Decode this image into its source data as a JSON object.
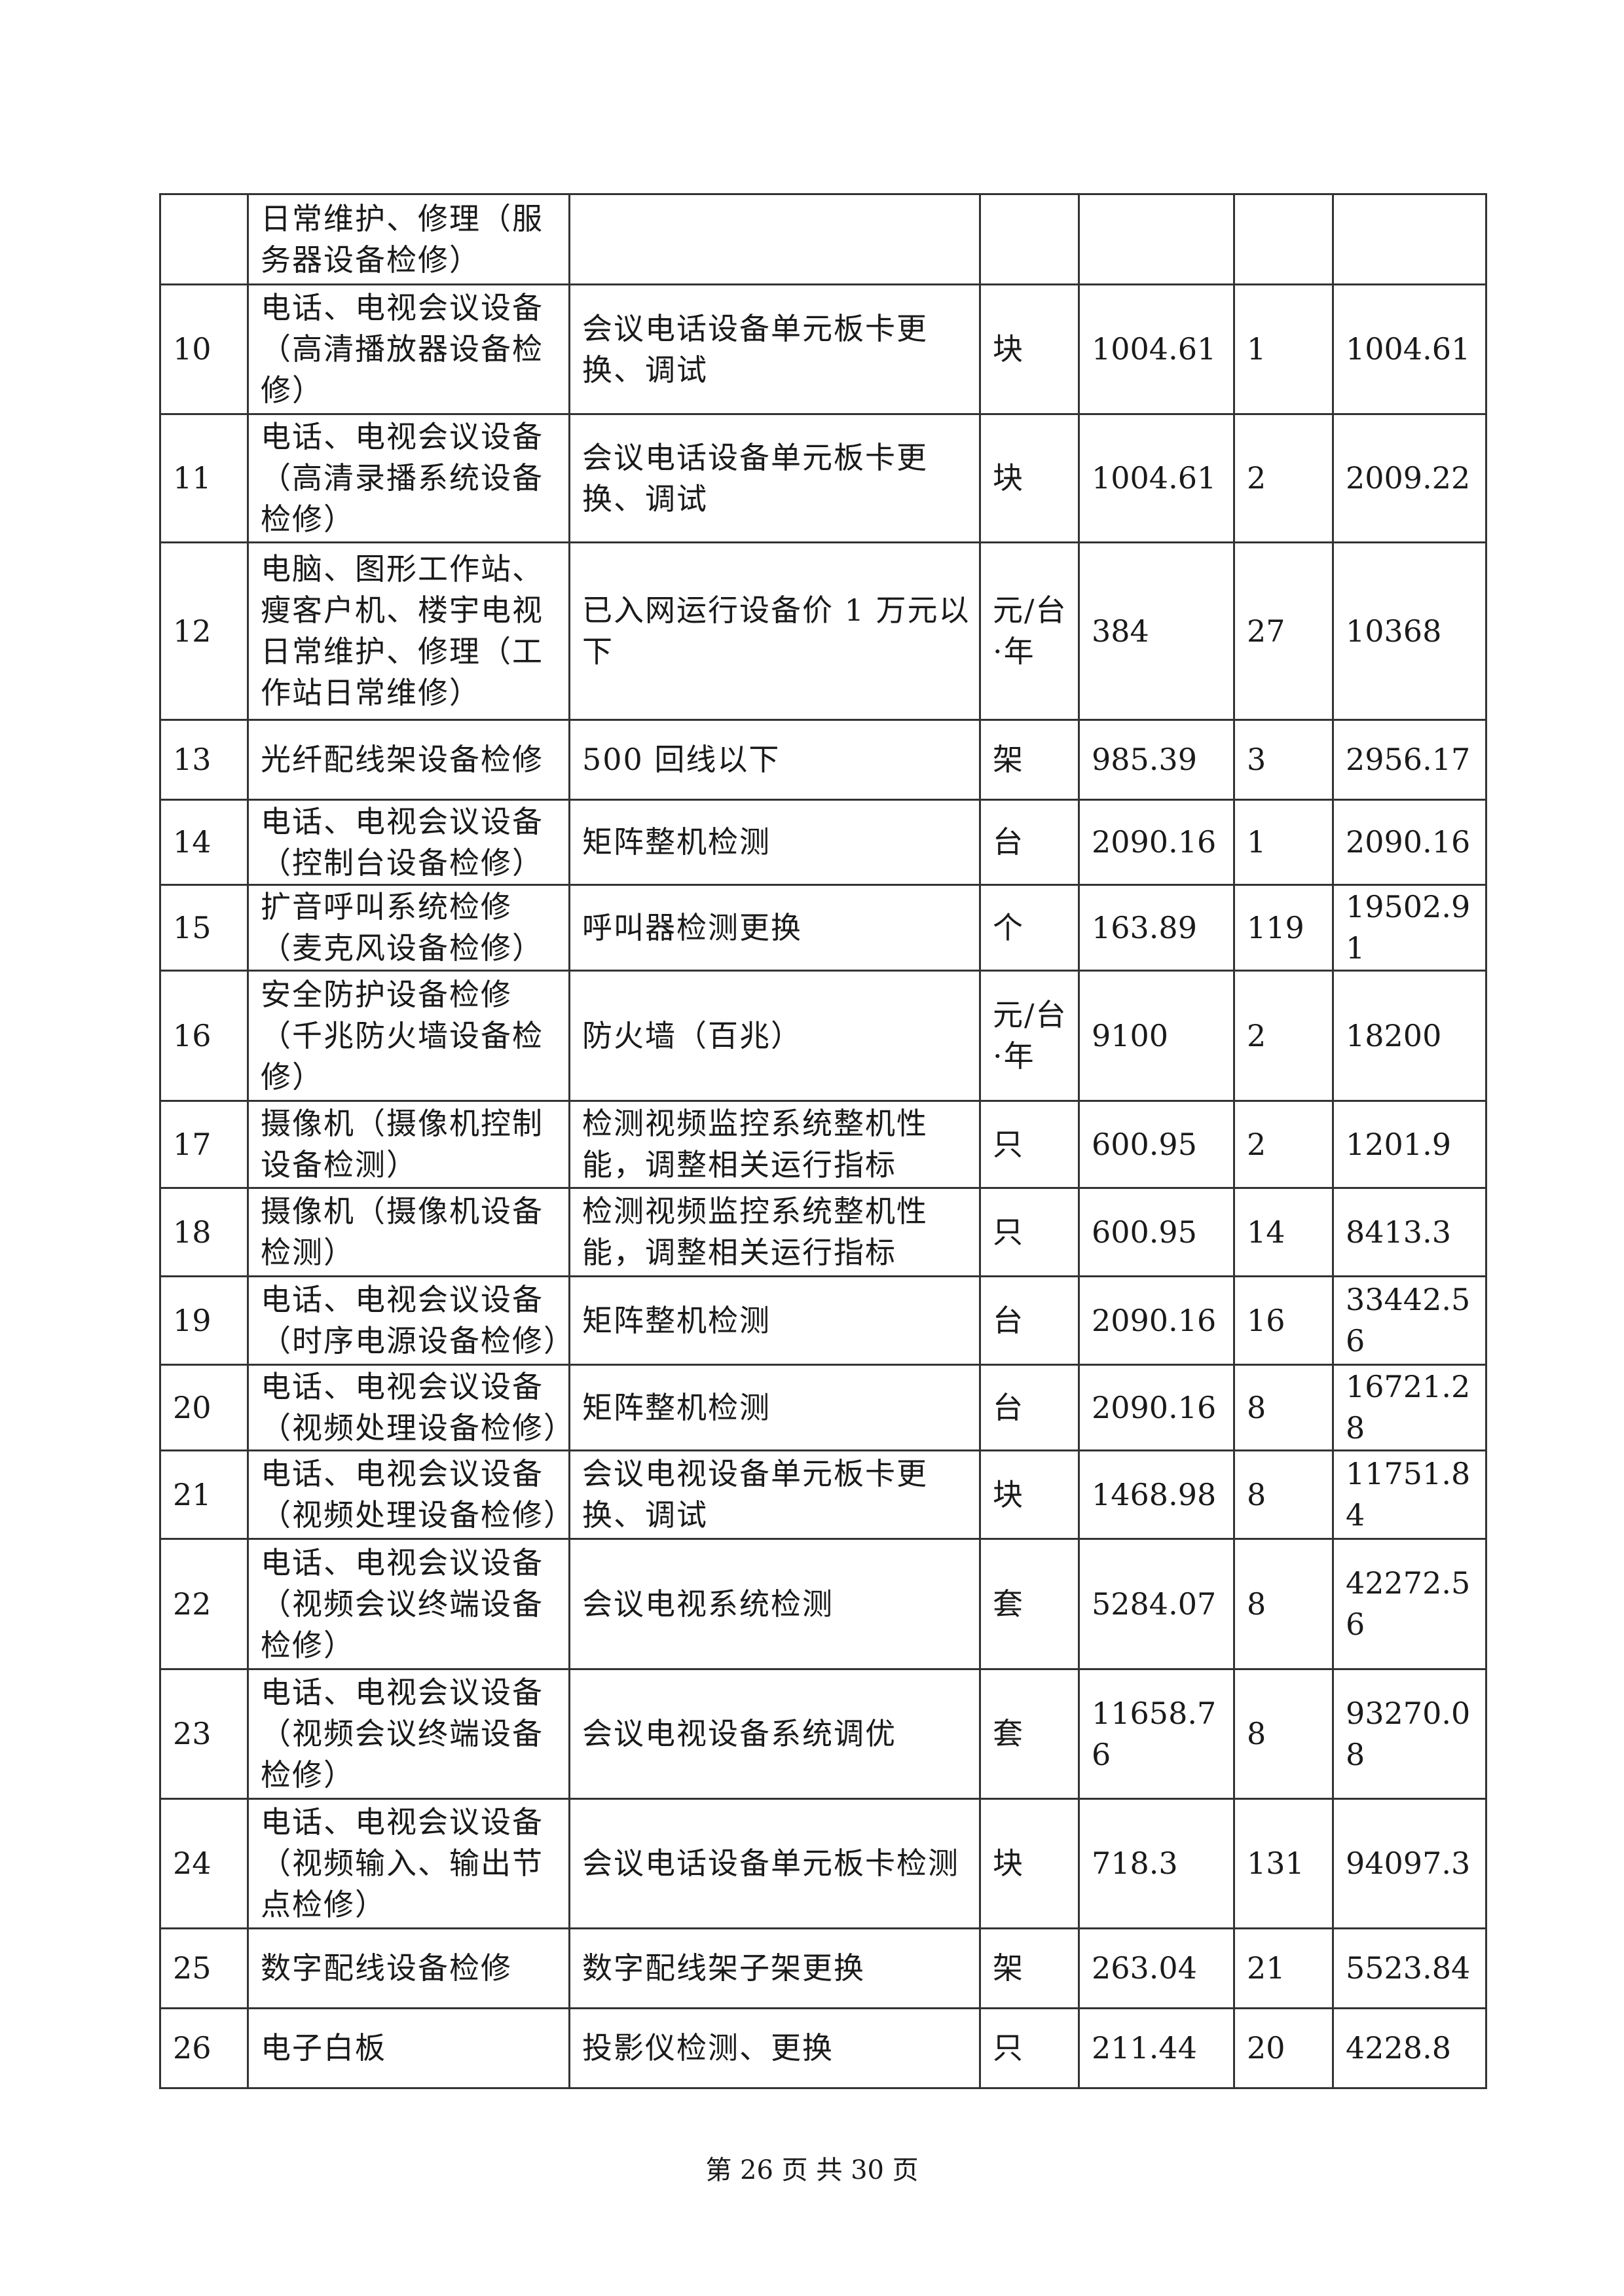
{
  "rows": [
    {
      "no": "",
      "item": "日常维护、修理（服务器设备检修）",
      "content": "",
      "unit": "",
      "price": "",
      "qty": "",
      "total": ""
    },
    {
      "no": "10",
      "item": "电话、电视会议设备（高清播放器设备检修）",
      "content": "会议电话设备单元板卡更换、调试",
      "unit": "块",
      "price": "1004.61",
      "qty": "1",
      "total": "1004.61"
    },
    {
      "no": "11",
      "item": "电话、电视会议设备（高清录播系统设备检修）",
      "content": "会议电话设备单元板卡更换、调试",
      "unit": "块",
      "price": "1004.61",
      "qty": "2",
      "total": "2009.22"
    },
    {
      "no": "12",
      "item": "电脑、图形工作站、瘦客户机、楼宇电视日常维护、修理（工作站日常维修）",
      "content": "已入网运行设备价 1 万元以下",
      "unit": "元/台·年",
      "price": "384",
      "qty": "27",
      "total": "10368"
    },
    {
      "no": "13",
      "item": "光纤配线架设备检修",
      "content": "500 回线以下",
      "unit": "架",
      "price": "985.39",
      "qty": "3",
      "total": "2956.17"
    },
    {
      "no": "14",
      "item": "电话、电视会议设备（控制台设备检修）",
      "content": "矩阵整机检测",
      "unit": "台",
      "price": "2090.16",
      "qty": "1",
      "total": "2090.16"
    },
    {
      "no": "15",
      "item": "扩音呼叫系统检修（麦克风设备检修）",
      "content": "呼叫器检测更换",
      "unit": "个",
      "price": "163.89",
      "qty": "119",
      "total": "19502.91"
    },
    {
      "no": "16",
      "item": "安全防护设备检修（千兆防火墙设备检修）",
      "content": "防火墙（百兆）",
      "unit": "元/台·年",
      "price": "9100",
      "qty": "2",
      "total": "18200"
    },
    {
      "no": "17",
      "item": "摄像机（摄像机控制设备检测）",
      "content": "检测视频监控系统整机性能，调整相关运行指标",
      "unit": "只",
      "price": "600.95",
      "qty": "2",
      "total": "1201.9"
    },
    {
      "no": "18",
      "item": "摄像机（摄像机设备检测）",
      "content": "检测视频监控系统整机性能，调整相关运行指标",
      "unit": "只",
      "price": "600.95",
      "qty": "14",
      "total": "8413.3"
    },
    {
      "no": "19",
      "item": "电话、电视会议设备（时序电源设备检修）",
      "content": "矩阵整机检测",
      "unit": "台",
      "price": "2090.16",
      "qty": "16",
      "total": "33442.56"
    },
    {
      "no": "20",
      "item": "电话、电视会议设备（视频处理设备检修）",
      "content": "矩阵整机检测",
      "unit": "台",
      "price": "2090.16",
      "qty": "8",
      "total": "16721.28"
    },
    {
      "no": "21",
      "item": "电话、电视会议设备（视频处理设备检修）",
      "content": "会议电视设备单元板卡更换、调试",
      "unit": "块",
      "price": "1468.98",
      "qty": "8",
      "total": "11751.84"
    },
    {
      "no": "22",
      "item": "电话、电视会议设备（视频会议终端设备检修）",
      "content": "会议电视系统检测",
      "unit": "套",
      "price": "5284.07",
      "qty": "8",
      "total": "42272.56"
    },
    {
      "no": "23",
      "item": "电话、电视会议设备（视频会议终端设备检修）",
      "content": "会议电视设备系统调优",
      "unit": "套",
      "price": "11658.76",
      "qty": "8",
      "total": "93270.08"
    },
    {
      "no": "24",
      "item": "电话、电视会议设备（视频输入、输出节点检修）",
      "content": "会议电话设备单元板卡检测",
      "unit": "块",
      "price": "718.3",
      "qty": "131",
      "total": "94097.3"
    },
    {
      "no": "25",
      "item": "数字配线设备检修",
      "content": "数字配线架子架更换",
      "unit": "架",
      "price": "263.04",
      "qty": "21",
      "total": "5523.84"
    },
    {
      "no": "26",
      "item": "电子白板",
      "content": "投影仪检测、更换",
      "unit": "只",
      "price": "211.44",
      "qty": "20",
      "total": "4228.8"
    }
  ],
  "footer": "第 26 页 共 30 页"
}
